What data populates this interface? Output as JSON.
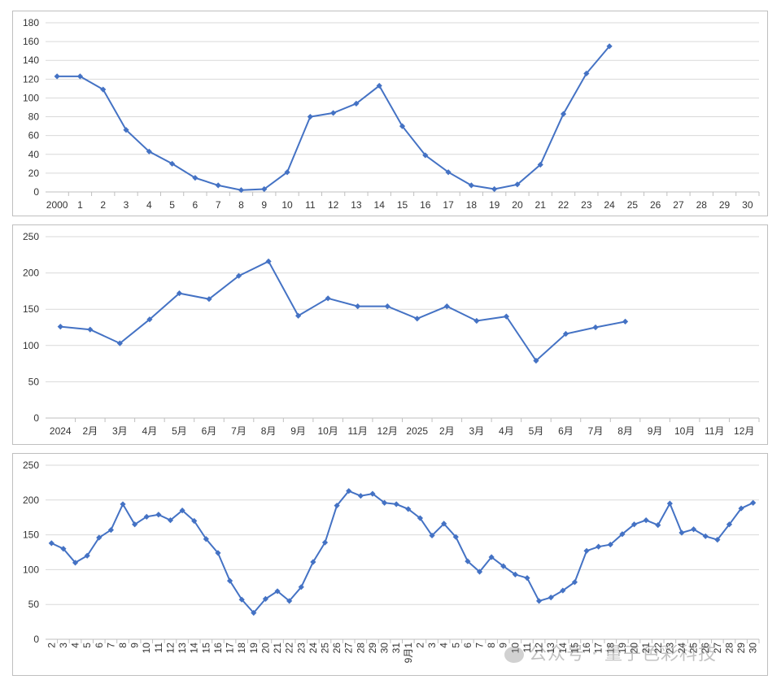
{
  "chart_data": [
    {
      "type": "line",
      "ylim": [
        0,
        180
      ],
      "yticks": [
        0,
        20,
        40,
        60,
        80,
        100,
        120,
        140,
        160,
        180
      ],
      "categories": [
        "2000",
        "1",
        "2",
        "3",
        "4",
        "5",
        "6",
        "7",
        "8",
        "9",
        "10",
        "11",
        "12",
        "13",
        "14",
        "15",
        "16",
        "17",
        "18",
        "19",
        "20",
        "21",
        "22",
        "23",
        "24",
        "25",
        "26",
        "27",
        "28",
        "29",
        "30"
      ],
      "series": [
        {
          "values": [
            123,
            123,
            109,
            66,
            43,
            30,
            15,
            7,
            2,
            3,
            21,
            80,
            84,
            94,
            113,
            70,
            39,
            21,
            7,
            3,
            8,
            29,
            83,
            126,
            155,
            null,
            null,
            null,
            null,
            null,
            null
          ]
        }
      ],
      "grid": true
    },
    {
      "type": "line",
      "ylim": [
        0,
        250
      ],
      "yticks": [
        0,
        50,
        100,
        150,
        200,
        250
      ],
      "categories": [
        "2024",
        "2月",
        "3月",
        "4月",
        "5月",
        "6月",
        "7月",
        "8月",
        "9月",
        "10月",
        "11月",
        "12月",
        "2025",
        "2月",
        "3月",
        "4月",
        "5月",
        "6月",
        "7月",
        "8月",
        "9月",
        "10月",
        "11月",
        "12月"
      ],
      "series": [
        {
          "values": [
            126,
            122,
            103,
            136,
            172,
            164,
            196,
            216,
            141,
            165,
            154,
            154,
            137,
            154,
            134,
            140,
            79,
            116,
            125,
            133,
            null,
            null,
            null,
            null
          ]
        }
      ],
      "grid": true
    },
    {
      "type": "line",
      "ylim": [
        0,
        250
      ],
      "yticks": [
        0,
        50,
        100,
        150,
        200,
        250
      ],
      "categories": [
        "2",
        "3",
        "4",
        "5",
        "6",
        "7",
        "8",
        "9",
        "10",
        "11",
        "12",
        "13",
        "14",
        "15",
        "16",
        "17",
        "18",
        "19",
        "20",
        "21",
        "22",
        "23",
        "24",
        "25",
        "26",
        "27",
        "28",
        "29",
        "30",
        "31",
        "9月1",
        "2",
        "3",
        "4",
        "5",
        "6",
        "7",
        "8",
        "9",
        "10",
        "11",
        "12",
        "13",
        "14",
        "15",
        "16",
        "17",
        "18",
        "19",
        "20",
        "21",
        "22",
        "23",
        "24",
        "25",
        "26",
        "27",
        "28",
        "29",
        "30"
      ],
      "series": [
        {
          "values": [
            138,
            130,
            110,
            120,
            146,
            157,
            194,
            165,
            176,
            179,
            171,
            185,
            170,
            144,
            124,
            84,
            57,
            38,
            58,
            69,
            55,
            75,
            111,
            139,
            192,
            213,
            206,
            209,
            196,
            194,
            187,
            174,
            149,
            166,
            147,
            112,
            97,
            118,
            105,
            93,
            88,
            55,
            60,
            70,
            82,
            127,
            133,
            136,
            151,
            165,
            171,
            164,
            195,
            153,
            158,
            148,
            143,
            165,
            188,
            196
          ]
        }
      ],
      "grid": true
    }
  ],
  "watermark": "公众号 · 量子色彩科技"
}
